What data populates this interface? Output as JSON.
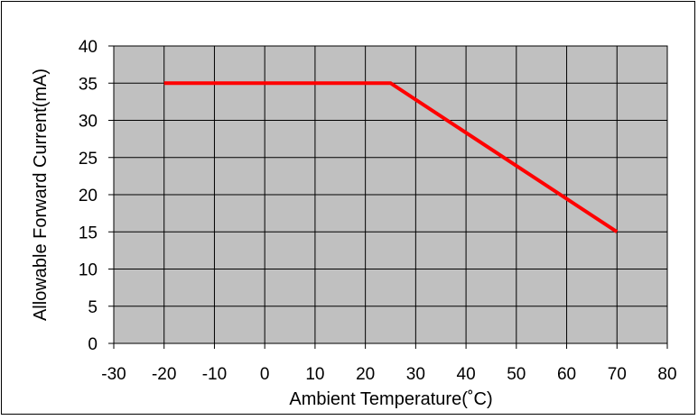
{
  "chart_data": {
    "type": "line",
    "xlabel": "Ambient Temperature(˚C)",
    "ylabel": "Allowable Forward Current(mA)",
    "xlim": [
      -30,
      80
    ],
    "ylim": [
      0,
      40
    ],
    "xticks": [
      -30,
      -20,
      -10,
      0,
      10,
      20,
      30,
      40,
      50,
      60,
      70,
      80
    ],
    "yticks": [
      0,
      5,
      10,
      15,
      20,
      25,
      30,
      35,
      40
    ],
    "grid": true,
    "legend": "none",
    "series": [
      {
        "x": [
          -20,
          25,
          70
        ],
        "y": [
          35,
          35,
          15
        ],
        "color": "#ff0000"
      }
    ],
    "colors": {
      "plot_background": "#c0c0c0",
      "grid": "#000000",
      "line": "#ff0000"
    }
  }
}
